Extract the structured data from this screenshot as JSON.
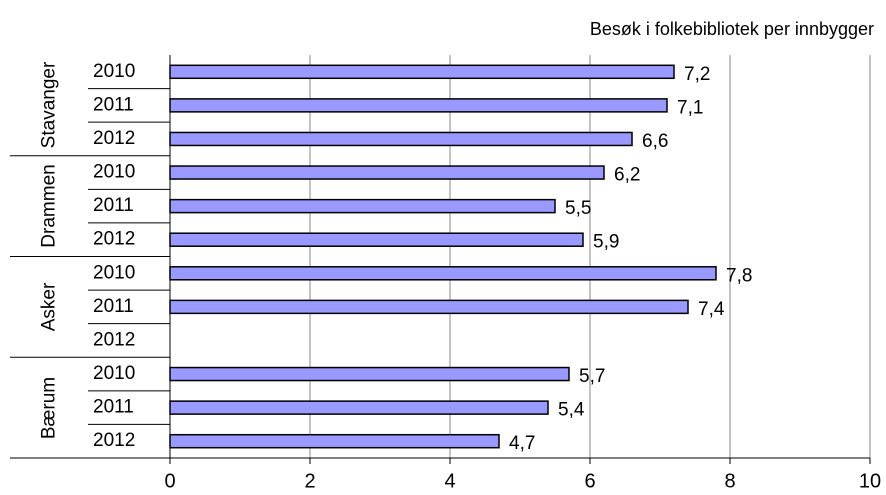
{
  "chart_data": {
    "type": "bar",
    "orientation": "horizontal",
    "title": "Besøk i folkebibliotek per innbygger",
    "color": "#9999ff",
    "groups": [
      {
        "name": "Stavanger",
        "categories": [
          "2010",
          "2011",
          "2012"
        ],
        "values": [
          7.2,
          7.1,
          6.6
        ],
        "value_labels": [
          "7,2",
          "7,1",
          "6,6"
        ]
      },
      {
        "name": "Drammen",
        "categories": [
          "2010",
          "2011",
          "2012"
        ],
        "values": [
          6.2,
          5.5,
          5.9
        ],
        "value_labels": [
          "6,2",
          "5,5",
          "5,9"
        ]
      },
      {
        "name": "Asker",
        "categories": [
          "2010",
          "2011",
          "2012"
        ],
        "values": [
          7.8,
          7.4,
          null
        ],
        "value_labels": [
          "7,8",
          "7,4",
          null
        ]
      },
      {
        "name": "Bærum",
        "categories": [
          "2010",
          "2011",
          "2012"
        ],
        "values": [
          5.7,
          5.4,
          4.7
        ],
        "value_labels": [
          "5,7",
          "5,4",
          "4,7"
        ]
      }
    ],
    "xlim": [
      0,
      10
    ],
    "xticks": [
      0,
      2,
      4,
      6,
      8,
      10
    ],
    "grid": true
  }
}
